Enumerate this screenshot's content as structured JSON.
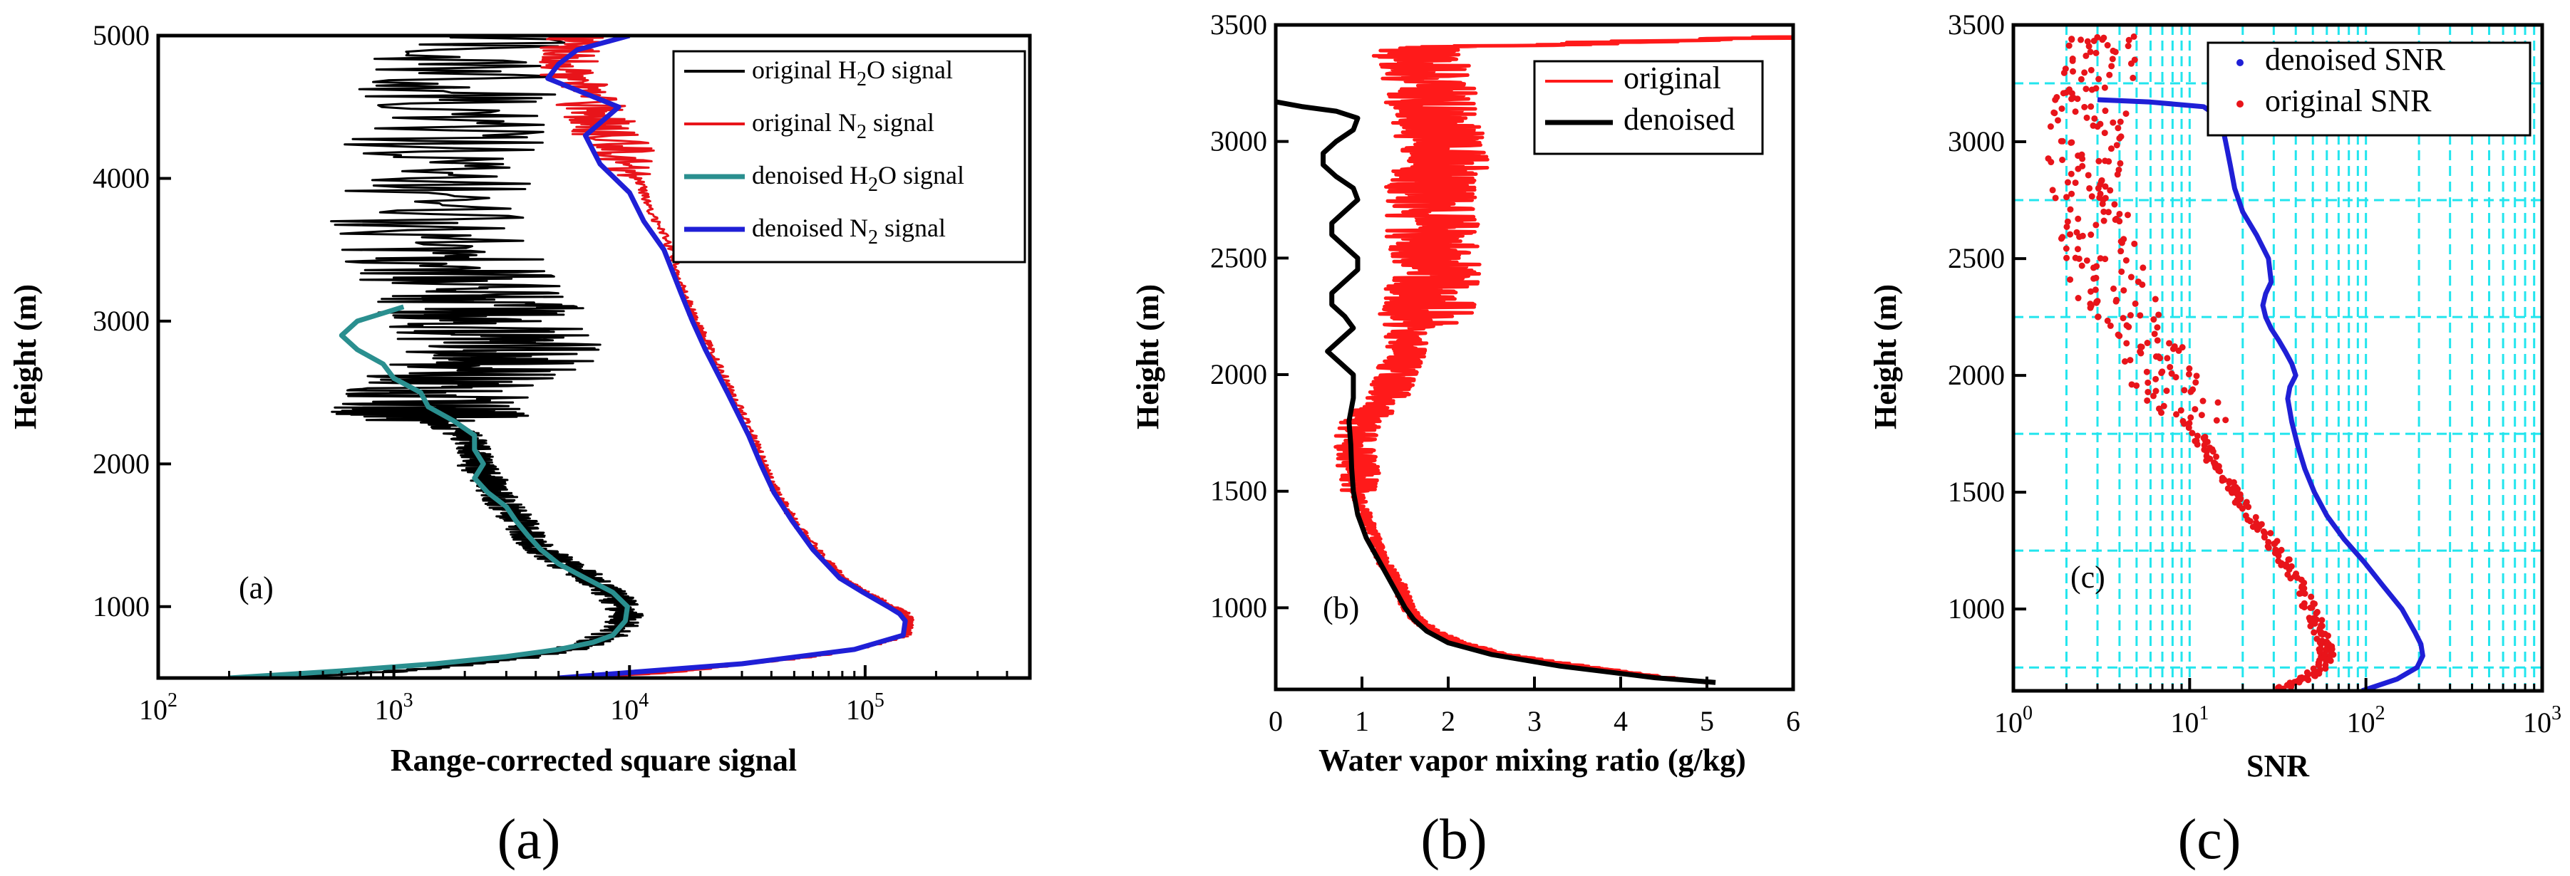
{
  "chart_data": [
    {
      "type": "line",
      "panel": "a",
      "annotation": "(a)",
      "caption": "(a)",
      "xlabel": "Range-corrected square signal",
      "ylabel": "Height (m)",
      "xscale": "log",
      "xlim": [
        100,
        500000
      ],
      "ylim": [
        500,
        5000
      ],
      "x_ticks": [
        {
          "value": 100,
          "base": "10",
          "exp": "2"
        },
        {
          "value": 1000,
          "base": "10",
          "exp": "3"
        },
        {
          "value": 10000,
          "base": "10",
          "exp": "4"
        },
        {
          "value": 100000,
          "base": "10",
          "exp": "5"
        }
      ],
      "y_ticks": [
        1000,
        2000,
        3000,
        4000,
        5000
      ],
      "legend_position": "top-right",
      "series": [
        {
          "name": "original H2O signal",
          "label_parts": [
            "original H",
            "2",
            "O signal"
          ],
          "color": "#000000",
          "style": "noisy",
          "y": [
            500,
            600,
            700,
            800,
            900,
            1000,
            1100,
            1200,
            1300,
            1400,
            1500,
            1600,
            1700,
            1800,
            1900,
            2000,
            2100,
            2200,
            2300,
            2400,
            2600,
            2800,
            3000,
            3200,
            3500,
            4000,
            4500,
            5000
          ],
          "x": [
            100,
            2000,
            5500,
            8200,
            9600,
            9400,
            8200,
            6800,
            5200,
            4200,
            3700,
            3400,
            3000,
            2700,
            2500,
            2200,
            2200,
            2000,
            1500,
            1500,
            2000,
            3000,
            2500,
            2000,
            1500,
            1500,
            2000,
            2000
          ]
        },
        {
          "name": "original N2 signal",
          "label_parts": [
            "original N",
            "2",
            " signal"
          ],
          "color": "#e8141a",
          "style": "noisy",
          "y": [
            500,
            600,
            700,
            800,
            900,
            950,
            1000,
            1100,
            1200,
            1400,
            1600,
            1800,
            2000,
            2200,
            2500,
            2800,
            3000,
            3200,
            3500,
            3800,
            4000,
            4300,
            4500,
            4800,
            5000
          ],
          "x": [
            5000,
            30000,
            90000,
            150000,
            155000,
            150000,
            130000,
            100000,
            80000,
            62000,
            50000,
            42000,
            37000,
            33000,
            27000,
            22000,
            19000,
            17000,
            15000,
            12000,
            11000,
            8000,
            7000,
            5500,
            6000
          ]
        },
        {
          "name": "denoised H2O signal",
          "label_parts": [
            "denoised H",
            "2",
            "O signal"
          ],
          "color": "#2a8f8f",
          "style": "smooth",
          "y": [
            500,
            550,
            600,
            650,
            700,
            750,
            800,
            900,
            1000,
            1100,
            1200,
            1300,
            1400,
            1500,
            1600,
            1700,
            1800,
            1900,
            2000,
            2100,
            2200,
            2300,
            2400,
            2500,
            2600,
            2700,
            2800,
            2900,
            3000,
            3100
          ],
          "x": [
            200,
            600,
            1500,
            3000,
            5000,
            7000,
            8500,
            9600,
            9800,
            8500,
            6500,
            5000,
            4200,
            3700,
            3300,
            3000,
            2500,
            2200,
            2400,
            2200,
            2200,
            1800,
            1400,
            1300,
            1000,
            900,
            700,
            600,
            700,
            1100
          ]
        },
        {
          "name": "denoised N2 signal",
          "label_parts": [
            "denoised N",
            "2",
            " signal"
          ],
          "color": "#1f1fd6",
          "style": "smooth",
          "y": [
            500,
            600,
            700,
            800,
            900,
            950,
            1000,
            1100,
            1200,
            1400,
            1600,
            1800,
            2000,
            2200,
            2500,
            2800,
            3000,
            3200,
            3500,
            3700,
            3900,
            4100,
            4300,
            4500,
            4700,
            4800,
            4900,
            5000
          ],
          "x": [
            5000,
            30000,
            90000,
            145000,
            148000,
            140000,
            125000,
            98000,
            78000,
            60000,
            49000,
            41000,
            36000,
            32000,
            26000,
            21000,
            18500,
            16500,
            14000,
            11500,
            10000,
            7500,
            6500,
            9000,
            4500,
            5000,
            6000,
            10000
          ]
        }
      ]
    },
    {
      "type": "line",
      "panel": "b",
      "annotation": "(b)",
      "caption": "(b)",
      "xlabel": "Water vapor mixing ratio (g/kg)",
      "ylabel": "Height (m)",
      "xlim": [
        0,
        6
      ],
      "ylim": [
        650,
        3500
      ],
      "x_ticks": [
        0,
        1,
        2,
        3,
        4,
        5,
        6
      ],
      "y_ticks": [
        1000,
        1500,
        2000,
        2500,
        3000,
        3500
      ],
      "legend_position": "top-right",
      "series": [
        {
          "name": "original",
          "color": "#ff1a1a",
          "style": "noisy",
          "y": [
            680,
            700,
            750,
            800,
            850,
            900,
            950,
            1000,
            1100,
            1200,
            1300,
            1400,
            1500,
            1600,
            1700,
            1800,
            1900,
            2000,
            2100,
            2200,
            2300,
            2400,
            2500,
            2600,
            2700,
            2800,
            2900,
            3000,
            3100,
            3200,
            3300,
            3400,
            3450
          ],
          "x": [
            5.0,
            4.5,
            3.5,
            2.6,
            2.1,
            1.8,
            1.6,
            1.5,
            1.4,
            1.2,
            1.1,
            1.0,
            0.9,
            0.85,
            0.8,
            0.9,
            1.2,
            1.3,
            1.4,
            1.4,
            1.6,
            1.6,
            1.6,
            1.6,
            1.6,
            1.6,
            1.7,
            1.7,
            1.6,
            1.6,
            1.5,
            1.4,
            6.0
          ]
        },
        {
          "name": "denoised",
          "color": "#000000",
          "style": "smooth",
          "y": [
            680,
            700,
            750,
            800,
            850,
            900,
            950,
            1000,
            1100,
            1200,
            1300,
            1400,
            1500,
            1600,
            1700,
            1800,
            1900,
            2000,
            2050,
            2100,
            2150,
            2200,
            2250,
            2300,
            2350,
            2400,
            2450,
            2500,
            2550,
            2600,
            2650,
            2700,
            2750,
            2800,
            2850,
            2900,
            2950,
            3000,
            3050,
            3100,
            3130,
            3150,
            3170
          ],
          "x": [
            5.1,
            4.4,
            3.3,
            2.5,
            2.0,
            1.75,
            1.6,
            1.5,
            1.35,
            1.2,
            1.05,
            0.95,
            0.9,
            0.88,
            0.87,
            0.85,
            0.9,
            0.9,
            0.75,
            0.6,
            0.75,
            0.9,
            0.8,
            0.65,
            0.65,
            0.8,
            0.95,
            0.95,
            0.8,
            0.65,
            0.65,
            0.8,
            0.95,
            0.9,
            0.7,
            0.55,
            0.55,
            0.7,
            0.9,
            0.95,
            0.7,
            0.3,
            0.0
          ]
        }
      ]
    },
    {
      "type": "scatter",
      "panel": "c",
      "annotation": "(c)",
      "caption": "(c)",
      "xlabel": "SNR",
      "ylabel": "Height (m)",
      "xscale": "log",
      "xlim": [
        1,
        1000
      ],
      "ylim": [
        650,
        3500
      ],
      "grid": true,
      "x_ticks": [
        {
          "value": 1,
          "base": "10",
          "exp": "0"
        },
        {
          "value": 10,
          "base": "10",
          "exp": "1"
        },
        {
          "value": 100,
          "base": "10",
          "exp": "2"
        },
        {
          "value": 1000,
          "base": "10",
          "exp": "3"
        }
      ],
      "y_ticks": [
        1000,
        1500,
        2000,
        2500,
        3000,
        3500
      ],
      "legend_position": "top-right",
      "series": [
        {
          "name": "denoised SNR",
          "color": "#1f1fd6",
          "style": "smooth",
          "y": [
            650,
            700,
            750,
            800,
            850,
            900,
            1000,
            1100,
            1200,
            1300,
            1400,
            1500,
            1600,
            1700,
            1800,
            1900,
            1950,
            2000,
            2050,
            2100,
            2150,
            2200,
            2250,
            2300,
            2350,
            2400,
            2500,
            2600,
            2700,
            2800,
            2900,
            3000,
            3100,
            3150,
            3170,
            3180
          ],
          "x": [
            95,
            150,
            195,
            210,
            205,
            190,
            160,
            125,
            98,
            75,
            60,
            51,
            45,
            41,
            38,
            36,
            37,
            40,
            38,
            35,
            32,
            29,
            27,
            26,
            27,
            29,
            28,
            24,
            20,
            18,
            17,
            16,
            15,
            12,
            6,
            3
          ]
        },
        {
          "name": "original SNR",
          "color": "#e8141a",
          "style": "scatter",
          "y": [
            650,
            700,
            750,
            800,
            850,
            900,
            1000,
            1100,
            1200,
            1300,
            1400,
            1500,
            1600,
            1700,
            1800,
            1900,
            2000,
            2100,
            2200,
            2300,
            2400,
            2500,
            2600,
            2700,
            2800,
            2900,
            3000,
            3100,
            3200,
            3300,
            3400,
            3450
          ],
          "x": [
            30,
            45,
            55,
            60,
            58,
            55,
            48,
            42,
            35,
            28,
            22,
            18,
            14,
            12,
            10,
            9,
            7,
            6,
            5,
            4,
            3.5,
            3.2,
            3.0,
            2.8,
            2.6,
            2.5,
            2.6,
            2.7,
            2.8,
            2.9,
            3.0,
            3.1
          ]
        }
      ]
    }
  ]
}
